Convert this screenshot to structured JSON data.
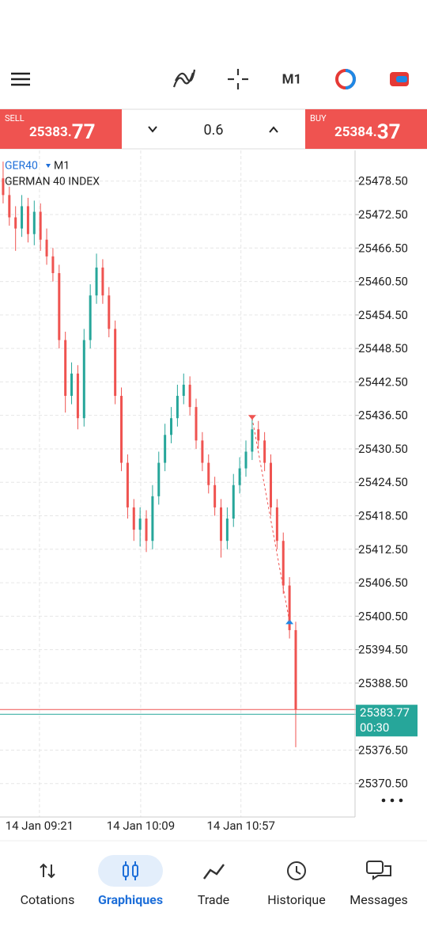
{
  "toolbar": {
    "timeframe": "M1"
  },
  "trade_bar": {
    "sell_label": "SELL",
    "sell_price_main": "25383.",
    "sell_price_big": "77",
    "volume": "0.6",
    "buy_label": "BUY",
    "buy_price_main": "25384.",
    "buy_price_big": "37"
  },
  "chart_data": {
    "type": "candlestick",
    "symbol": "GER40",
    "timeframe": "M1",
    "description": "GERMAN 40 INDEX",
    "up_color": "#26a69a",
    "down_color": "#ef5350",
    "grid": true,
    "candles": [
      {
        "o": 25479,
        "h": 25482,
        "l": 25474.5,
        "c": 25476
      },
      {
        "o": 25476,
        "h": 25477.5,
        "l": 25470.5,
        "c": 25472
      },
      {
        "o": 25472,
        "h": 25474,
        "l": 25466,
        "c": 25470
      },
      {
        "o": 25470,
        "h": 25476,
        "l": 25468.5,
        "c": 25474
      },
      {
        "o": 25474,
        "h": 25475.5,
        "l": 25467.5,
        "c": 25469
      },
      {
        "o": 25469,
        "h": 25475,
        "l": 25467,
        "c": 25473
      },
      {
        "o": 25473,
        "h": 25474.5,
        "l": 25466,
        "c": 25468
      },
      {
        "o": 25468,
        "h": 25470,
        "l": 25463.5,
        "c": 25465
      },
      {
        "o": 25465,
        "h": 25466.5,
        "l": 25460.5,
        "c": 25462
      },
      {
        "o": 25462,
        "h": 25463.5,
        "l": 25448.5,
        "c": 25450
      },
      {
        "o": 25450,
        "h": 25451.5,
        "l": 25437,
        "c": 25440
      },
      {
        "o": 25440,
        "h": 25446,
        "l": 25438.5,
        "c": 25444
      },
      {
        "o": 25444,
        "h": 25445.5,
        "l": 25434,
        "c": 25436
      },
      {
        "o": 25436,
        "h": 25452,
        "l": 25434.5,
        "c": 25450
      },
      {
        "o": 25450,
        "h": 25460,
        "l": 25448.5,
        "c": 25458
      },
      {
        "o": 25458,
        "h": 25465.5,
        "l": 25456.5,
        "c": 25463
      },
      {
        "o": 25463,
        "h": 25464.5,
        "l": 25456.5,
        "c": 25458
      },
      {
        "o": 25458,
        "h": 25459.5,
        "l": 25450.5,
        "c": 25452
      },
      {
        "o": 25452,
        "h": 25453.5,
        "l": 25438.5,
        "c": 25440
      },
      {
        "o": 25440,
        "h": 25441.5,
        "l": 25426.5,
        "c": 25428
      },
      {
        "o": 25428,
        "h": 25429.5,
        "l": 25418,
        "c": 25420
      },
      {
        "o": 25420,
        "h": 25421.5,
        "l": 25414,
        "c": 25416
      },
      {
        "o": 25416,
        "h": 25420,
        "l": 25413,
        "c": 25418
      },
      {
        "o": 25418,
        "h": 25419.5,
        "l": 25412,
        "c": 25414
      },
      {
        "o": 25414,
        "h": 25424,
        "l": 25412.5,
        "c": 25422
      },
      {
        "o": 25422,
        "h": 25430,
        "l": 25420.5,
        "c": 25428
      },
      {
        "o": 25428,
        "h": 25435,
        "l": 25426.5,
        "c": 25433
      },
      {
        "o": 25433,
        "h": 25438,
        "l": 25431.5,
        "c": 25436
      },
      {
        "o": 25436,
        "h": 25442,
        "l": 25434.5,
        "c": 25440
      },
      {
        "o": 25440,
        "h": 25444,
        "l": 25438.5,
        "c": 25442
      },
      {
        "o": 25442,
        "h": 25443.5,
        "l": 25436.5,
        "c": 25438
      },
      {
        "o": 25438,
        "h": 25439.5,
        "l": 25430.5,
        "c": 25432
      },
      {
        "o": 25432,
        "h": 25433.5,
        "l": 25426.5,
        "c": 25428
      },
      {
        "o": 25428,
        "h": 25429.5,
        "l": 25422.5,
        "c": 25424
      },
      {
        "o": 25424,
        "h": 25425.5,
        "l": 25418.5,
        "c": 25420
      },
      {
        "o": 25420,
        "h": 25421.5,
        "l": 25411,
        "c": 25414
      },
      {
        "o": 25414,
        "h": 25420,
        "l": 25412.5,
        "c": 25418
      },
      {
        "o": 25418,
        "h": 25426,
        "l": 25416.5,
        "c": 25424
      },
      {
        "o": 25424,
        "h": 25429,
        "l": 25422.5,
        "c": 25427
      },
      {
        "o": 25427,
        "h": 25432,
        "l": 25425.5,
        "c": 25430
      },
      {
        "o": 25430,
        "h": 25436,
        "l": 25428.5,
        "c": 25434
      },
      {
        "o": 25434,
        "h": 25435.5,
        "l": 25430.5,
        "c": 25432
      },
      {
        "o": 25432,
        "h": 25433.5,
        "l": 25426.5,
        "c": 25428
      },
      {
        "o": 25428,
        "h": 25429.5,
        "l": 25418.5,
        "c": 25420
      },
      {
        "o": 25420,
        "h": 25421.5,
        "l": 25412.5,
        "c": 25414
      },
      {
        "o": 25414,
        "h": 25415.5,
        "l": 25404.5,
        "c": 25406
      },
      {
        "o": 25406,
        "h": 25407.5,
        "l": 25396.5,
        "c": 25398
      },
      {
        "o": 25398,
        "h": 25399.5,
        "l": 25377,
        "c": 25383.77
      }
    ],
    "xlim": [
      -0.5,
      56.4
    ],
    "xticks": [
      {
        "value": 5.84,
        "label": "14 Jan 09:21"
      },
      {
        "value": 22.1,
        "label": "14 Jan 10:09"
      },
      {
        "value": 38.2,
        "label": "14 Jan 10:57"
      }
    ],
    "ylim": [
      25364.5,
      25484
    ],
    "yticks": [
      {
        "value": 25478.5,
        "label": "25478.50"
      },
      {
        "value": 25472.5,
        "label": "25472.50"
      },
      {
        "value": 25466.5,
        "label": "25466.50"
      },
      {
        "value": 25460.5,
        "label": "25460.50"
      },
      {
        "value": 25454.5,
        "label": "25454.50"
      },
      {
        "value": 25448.5,
        "label": "25448.50"
      },
      {
        "value": 25442.5,
        "label": "25442.50"
      },
      {
        "value": 25436.5,
        "label": "25436.50"
      },
      {
        "value": 25430.5,
        "label": "25430.50"
      },
      {
        "value": 25424.5,
        "label": "25424.50"
      },
      {
        "value": 25418.5,
        "label": "25418.50"
      },
      {
        "value": 25412.5,
        "label": "25412.50"
      },
      {
        "value": 25406.5,
        "label": "25406.50"
      },
      {
        "value": 25400.5,
        "label": "25400.50"
      },
      {
        "value": 25394.5,
        "label": "25394.50"
      },
      {
        "value": 25388.5,
        "label": "25388.50"
      },
      {
        "value": 25376.5,
        "label": "25376.50"
      },
      {
        "value": 25370.5,
        "label": "25370.50"
      }
    ],
    "current_price": {
      "value": 25383.77,
      "label": "25383.77"
    },
    "countdown": "00:30"
  },
  "nav": {
    "items": [
      "Cotations",
      "Graphiques",
      "Trade",
      "Historique",
      "Messages"
    ]
  }
}
